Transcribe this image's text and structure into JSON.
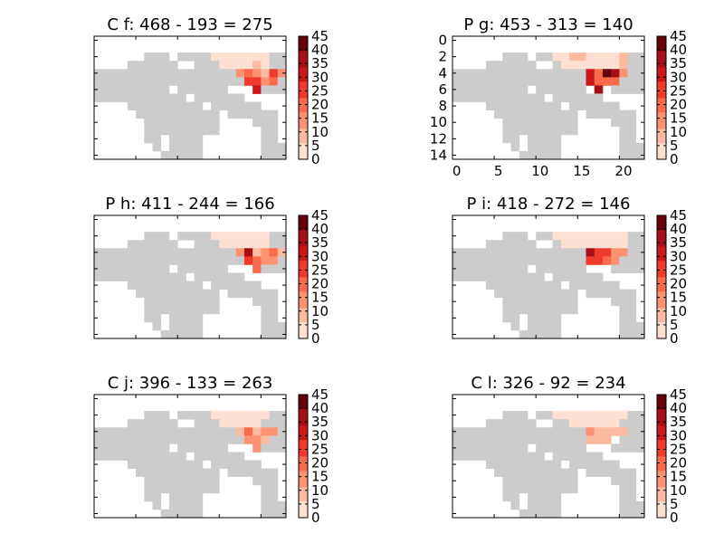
{
  "figure": {
    "colormap": [
      "#cccccc",
      "#fee0d2",
      "#fcbba1",
      "#fc9272",
      "#fb6a4a",
      "#ef3b2c",
      "#cb181d",
      "#a50f15",
      "#67000d"
    ],
    "colorbar_ticks": [
      "0",
      "5",
      "10",
      "15",
      "20",
      "25",
      "30",
      "35",
      "40",
      "45"
    ],
    "colorbar_range": [
      0,
      45
    ]
  },
  "chart_data": [
    {
      "type": "heatmap",
      "title": "C f:  468 -  193 =  275",
      "grid_shape": [
        15,
        23
      ],
      "xlim": [
        0,
        23
      ],
      "ylim": [
        15,
        0
      ],
      "x_tick_labels": [],
      "y_tick_labels": [],
      "hot_cells": [
        [
          2,
          14,
          2
        ],
        [
          2,
          15,
          5
        ],
        [
          2,
          16,
          4
        ],
        [
          2,
          17,
          4
        ],
        [
          2,
          18,
          2
        ],
        [
          2,
          19,
          3
        ],
        [
          2,
          20,
          4
        ],
        [
          3,
          15,
          5
        ],
        [
          3,
          16,
          4
        ],
        [
          3,
          17,
          3
        ],
        [
          3,
          18,
          3
        ],
        [
          3,
          19,
          6
        ],
        [
          3,
          20,
          4
        ],
        [
          4,
          17,
          14
        ],
        [
          4,
          18,
          19
        ],
        [
          4,
          19,
          15
        ],
        [
          4,
          20,
          10
        ],
        [
          4,
          21,
          28
        ],
        [
          4,
          22,
          12
        ],
        [
          5,
          18,
          25
        ],
        [
          5,
          19,
          24
        ],
        [
          5,
          20,
          13
        ],
        [
          5,
          21,
          22
        ],
        [
          6,
          19,
          30
        ]
      ]
    },
    {
      "type": "heatmap",
      "title": "P g:  453 -  313 =  140",
      "grid_shape": [
        15,
        23
      ],
      "xlim": [
        0,
        23
      ],
      "ylim": [
        15,
        0
      ],
      "x_tick_labels": [
        "0",
        "5",
        "10",
        "15",
        "20"
      ],
      "y_tick_labels": [
        "0",
        "2",
        "4",
        "6",
        "8",
        "10",
        "12",
        "14"
      ],
      "hot_cells": [
        [
          2,
          12,
          2
        ],
        [
          2,
          13,
          5
        ],
        [
          2,
          14,
          6
        ],
        [
          2,
          15,
          6
        ],
        [
          2,
          16,
          4
        ],
        [
          2,
          17,
          5
        ],
        [
          2,
          18,
          4
        ],
        [
          2,
          19,
          5
        ],
        [
          2,
          20,
          6
        ],
        [
          3,
          13,
          4
        ],
        [
          3,
          14,
          4
        ],
        [
          3,
          15,
          3
        ],
        [
          3,
          16,
          3
        ],
        [
          3,
          17,
          4
        ],
        [
          3,
          18,
          3
        ],
        [
          3,
          19,
          3
        ],
        [
          3,
          20,
          6
        ],
        [
          4,
          16,
          33
        ],
        [
          4,
          17,
          18
        ],
        [
          4,
          18,
          40
        ],
        [
          4,
          19,
          35
        ],
        [
          4,
          20,
          15
        ],
        [
          5,
          16,
          32
        ],
        [
          5,
          17,
          22
        ],
        [
          5,
          18,
          18
        ],
        [
          5,
          19,
          17
        ],
        [
          6,
          17,
          38
        ]
      ]
    },
    {
      "type": "heatmap",
      "title": "P h:  411 -  244 =  166",
      "grid_shape": [
        15,
        23
      ],
      "xlim": [
        0,
        23
      ],
      "ylim": [
        15,
        0
      ],
      "x_tick_labels": [],
      "y_tick_labels": [],
      "hot_cells": [
        [
          2,
          14,
          5
        ],
        [
          2,
          15,
          5
        ],
        [
          2,
          16,
          3
        ],
        [
          2,
          17,
          4
        ],
        [
          2,
          18,
          2
        ],
        [
          2,
          19,
          4
        ],
        [
          2,
          20,
          5
        ],
        [
          3,
          15,
          4
        ],
        [
          3,
          16,
          5
        ],
        [
          3,
          17,
          4
        ],
        [
          3,
          18,
          3
        ],
        [
          3,
          19,
          4
        ],
        [
          3,
          20,
          3
        ],
        [
          4,
          17,
          12
        ],
        [
          4,
          18,
          36
        ],
        [
          4,
          19,
          10
        ],
        [
          4,
          20,
          12
        ],
        [
          4,
          21,
          22
        ],
        [
          4,
          22,
          6
        ],
        [
          5,
          18,
          26
        ],
        [
          5,
          19,
          22
        ],
        [
          5,
          20,
          13
        ],
        [
          5,
          21,
          14
        ],
        [
          6,
          19,
          22
        ]
      ]
    },
    {
      "type": "heatmap",
      "title": "P i:  418 -  272 =  146",
      "grid_shape": [
        15,
        23
      ],
      "xlim": [
        0,
        23
      ],
      "ylim": [
        15,
        0
      ],
      "x_tick_labels": [],
      "y_tick_labels": [],
      "hot_cells": [
        [
          2,
          12,
          2
        ],
        [
          2,
          13,
          4
        ],
        [
          2,
          14,
          5
        ],
        [
          2,
          15,
          4
        ],
        [
          2,
          16,
          3
        ],
        [
          2,
          17,
          4
        ],
        [
          2,
          18,
          4
        ],
        [
          2,
          19,
          4
        ],
        [
          2,
          20,
          5
        ],
        [
          3,
          13,
          3
        ],
        [
          3,
          14,
          3
        ],
        [
          3,
          15,
          3
        ],
        [
          3,
          16,
          3
        ],
        [
          3,
          17,
          3
        ],
        [
          3,
          18,
          3
        ],
        [
          3,
          19,
          4
        ],
        [
          3,
          20,
          5
        ],
        [
          4,
          16,
          36
        ],
        [
          4,
          17,
          24
        ],
        [
          4,
          18,
          27
        ],
        [
          4,
          19,
          16
        ],
        [
          4,
          20,
          13
        ],
        [
          5,
          16,
          24
        ],
        [
          5,
          17,
          25
        ],
        [
          5,
          18,
          19
        ],
        [
          5,
          19,
          15
        ]
      ]
    },
    {
      "type": "heatmap",
      "title": "C j:  396 -  133 =  263",
      "grid_shape": [
        15,
        23
      ],
      "xlim": [
        0,
        23
      ],
      "ylim": [
        15,
        0
      ],
      "x_tick_labels": [],
      "y_tick_labels": [],
      "hot_cells": [
        [
          2,
          14,
          3
        ],
        [
          2,
          15,
          4
        ],
        [
          2,
          16,
          3
        ],
        [
          2,
          17,
          3
        ],
        [
          2,
          18,
          2
        ],
        [
          2,
          19,
          3
        ],
        [
          2,
          20,
          4
        ],
        [
          3,
          15,
          3
        ],
        [
          3,
          16,
          4
        ],
        [
          3,
          17,
          3
        ],
        [
          3,
          18,
          2
        ],
        [
          3,
          19,
          3
        ],
        [
          4,
          17,
          10
        ],
        [
          4,
          18,
          20
        ],
        [
          4,
          19,
          11
        ],
        [
          4,
          20,
          12
        ],
        [
          4,
          21,
          14
        ],
        [
          5,
          18,
          14
        ],
        [
          5,
          19,
          16
        ],
        [
          5,
          20,
          9
        ],
        [
          6,
          19,
          14
        ]
      ]
    },
    {
      "type": "heatmap",
      "title": "C l:  326 -   92 =  234",
      "grid_shape": [
        15,
        23
      ],
      "xlim": [
        0,
        23
      ],
      "ylim": [
        15,
        0
      ],
      "x_tick_labels": [],
      "y_tick_labels": [],
      "hot_cells": [
        [
          2,
          12,
          2
        ],
        [
          2,
          13,
          3
        ],
        [
          2,
          14,
          3
        ],
        [
          2,
          15,
          2
        ],
        [
          2,
          16,
          2
        ],
        [
          2,
          17,
          3
        ],
        [
          2,
          18,
          3
        ],
        [
          2,
          19,
          4
        ],
        [
          2,
          20,
          4
        ],
        [
          3,
          14,
          3
        ],
        [
          3,
          15,
          2
        ],
        [
          3,
          16,
          3
        ],
        [
          3,
          17,
          2
        ],
        [
          3,
          18,
          2
        ],
        [
          3,
          19,
          3
        ],
        [
          4,
          16,
          12
        ],
        [
          4,
          17,
          10
        ],
        [
          4,
          18,
          7
        ],
        [
          4,
          19,
          8
        ],
        [
          4,
          20,
          6
        ],
        [
          5,
          16,
          11
        ],
        [
          5,
          17,
          10
        ],
        [
          5,
          18,
          8
        ]
      ]
    }
  ]
}
